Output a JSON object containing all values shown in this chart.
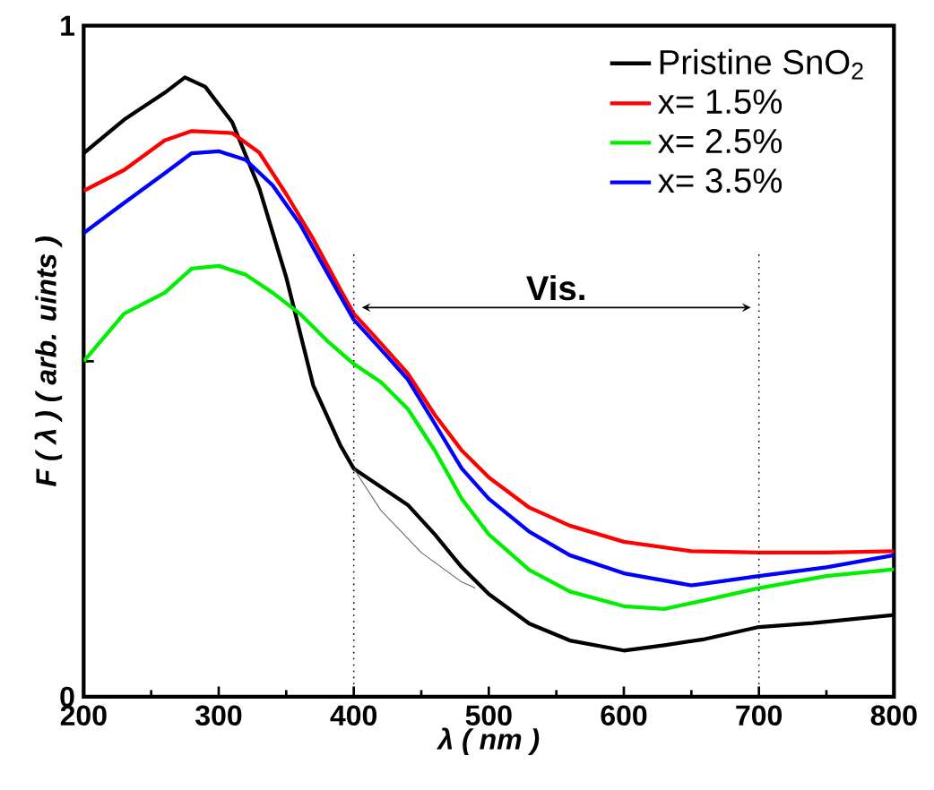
{
  "chart_data": {
    "type": "line",
    "xlabel": "λ ( nm )",
    "ylabel": "F ( λ ) ( arb. uints )",
    "xlim": [
      200,
      800
    ],
    "ylim": [
      0,
      1
    ],
    "xticks": [
      200,
      300,
      400,
      500,
      600,
      700,
      800
    ],
    "yticks": [
      0,
      {
        "value": 0.5,
        "label": null
      },
      1
    ],
    "legend": "top right",
    "grid": false,
    "line_style": "solid",
    "ref_lines": [
      {
        "axis": "x",
        "value": 400,
        "line_style": "dotted"
      },
      {
        "axis": "x",
        "value": 700,
        "line_style": "dotted"
      }
    ],
    "annotations": [
      "Vis."
    ],
    "series": [
      {
        "name": "Pristine SnO$_{2}$",
        "color": "#000000",
        "x": [
          200,
          230,
          260,
          275,
          290,
          310,
          330,
          350,
          370,
          390,
          400,
          420,
          440,
          460,
          480,
          500,
          530,
          560,
          600,
          630,
          660,
          700,
          740,
          800
        ],
        "values": [
          0.81,
          0.86,
          0.9,
          0.923,
          0.909,
          0.856,
          0.758,
          0.625,
          0.464,
          0.375,
          0.34,
          0.313,
          0.286,
          0.242,
          0.193,
          0.153,
          0.109,
          0.084,
          0.069,
          0.077,
          0.086,
          0.104,
          0.11,
          0.122
        ]
      },
      {
        "name": "x= 1.5%",
        "color": "#ff0000",
        "x": [
          200,
          230,
          260,
          280,
          310,
          330,
          350,
          370,
          390,
          400,
          420,
          440,
          460,
          480,
          500,
          530,
          560,
          600,
          650,
          700,
          750,
          800
        ],
        "values": [
          0.754,
          0.785,
          0.829,
          0.843,
          0.84,
          0.811,
          0.749,
          0.682,
          0.607,
          0.571,
          0.527,
          0.482,
          0.42,
          0.367,
          0.327,
          0.282,
          0.255,
          0.231,
          0.217,
          0.215,
          0.215,
          0.217
        ]
      },
      {
        "name": "x= 2.5%",
        "color": "#00ee00",
        "x": [
          200,
          230,
          260,
          280,
          300,
          320,
          340,
          360,
          380,
          400,
          420,
          440,
          460,
          480,
          500,
          530,
          560,
          600,
          630,
          660,
          700,
          750,
          800
        ],
        "values": [
          0.5,
          0.571,
          0.602,
          0.638,
          0.642,
          0.629,
          0.602,
          0.571,
          0.531,
          0.496,
          0.469,
          0.429,
          0.367,
          0.295,
          0.242,
          0.189,
          0.157,
          0.135,
          0.131,
          0.144,
          0.162,
          0.18,
          0.19
        ]
      },
      {
        "name": "x= 3.5%",
        "color": "#0000ff",
        "x": [
          200,
          230,
          260,
          280,
          300,
          320,
          340,
          360,
          380,
          400,
          420,
          440,
          460,
          480,
          500,
          530,
          560,
          600,
          650,
          700,
          750,
          800
        ],
        "values": [
          0.691,
          0.736,
          0.78,
          0.81,
          0.813,
          0.8,
          0.762,
          0.705,
          0.633,
          0.562,
          0.518,
          0.473,
          0.407,
          0.34,
          0.295,
          0.246,
          0.211,
          0.184,
          0.166,
          0.18,
          0.193,
          0.211
        ]
      },
      {
        "type": "line",
        "color": "#666666",
        "x": [
          400,
          420,
          450,
          480,
          490
        ],
        "values": [
          0.34,
          0.278,
          0.215,
          0.171,
          0.162
        ]
      }
    ]
  }
}
